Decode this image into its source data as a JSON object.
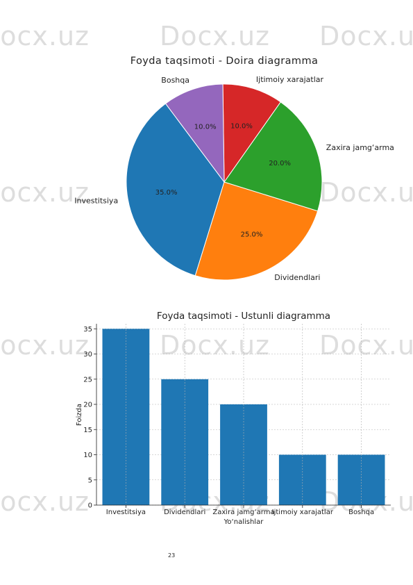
{
  "watermark": "Docx.uz",
  "page_number": "23",
  "chart_data": [
    {
      "type": "pie",
      "title": "Foyda taqsimoti - Doira diagramma",
      "categories": [
        "Investitsiya",
        "Dividendlari",
        "Zaxira jamg‘arma",
        "Ijtimoiy xarajatlar",
        "Boshqa"
      ],
      "values": [
        35,
        25,
        20,
        10,
        10
      ],
      "labels": [
        "35.0%",
        "25.0%",
        "20.0%",
        "10.0%",
        "10.0%"
      ],
      "colors": [
        "#1f77b4",
        "#ff7f0e",
        "#2ca02c",
        "#d62728",
        "#9467bd"
      ]
    },
    {
      "type": "bar",
      "title": "Foyda taqsimoti - Ustunli diagramma",
      "categories": [
        "Investitsiya",
        "Dividendlari",
        "Zaxira jamg‘arma",
        "Ijtimoiy xarajatlar",
        "Boshqa"
      ],
      "values": [
        35,
        25,
        20,
        10,
        10
      ],
      "xlabel": "Yo‘nalishlar",
      "ylabel": "Foizda",
      "ylim": [
        0,
        36
      ],
      "yticks": [
        0,
        5,
        10,
        15,
        20,
        25,
        30,
        35
      ],
      "grid": true,
      "color": "#1f77b4"
    }
  ]
}
